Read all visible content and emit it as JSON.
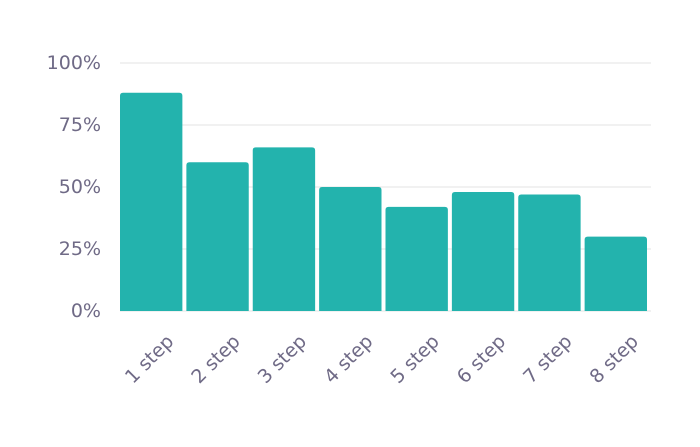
{
  "chart_data": {
    "type": "bar",
    "categories": [
      "1 step",
      "2 step",
      "3 step",
      "4 step",
      "5 step",
      "6 step",
      "7 step",
      "8 step"
    ],
    "values": [
      88,
      60,
      66,
      50,
      42,
      48,
      47,
      30
    ],
    "ylim": [
      0,
      100
    ],
    "y_ticks": [
      0,
      25,
      50,
      75,
      100
    ],
    "y_tick_labels": [
      "0%",
      "25%",
      "50%",
      "75%",
      "100%"
    ],
    "grid": true,
    "title": "",
    "xlabel": "",
    "ylabel": "",
    "colors": {
      "bar": "#23b3ad",
      "grid": "#e3e3e3",
      "text": "#6f6a86"
    }
  }
}
